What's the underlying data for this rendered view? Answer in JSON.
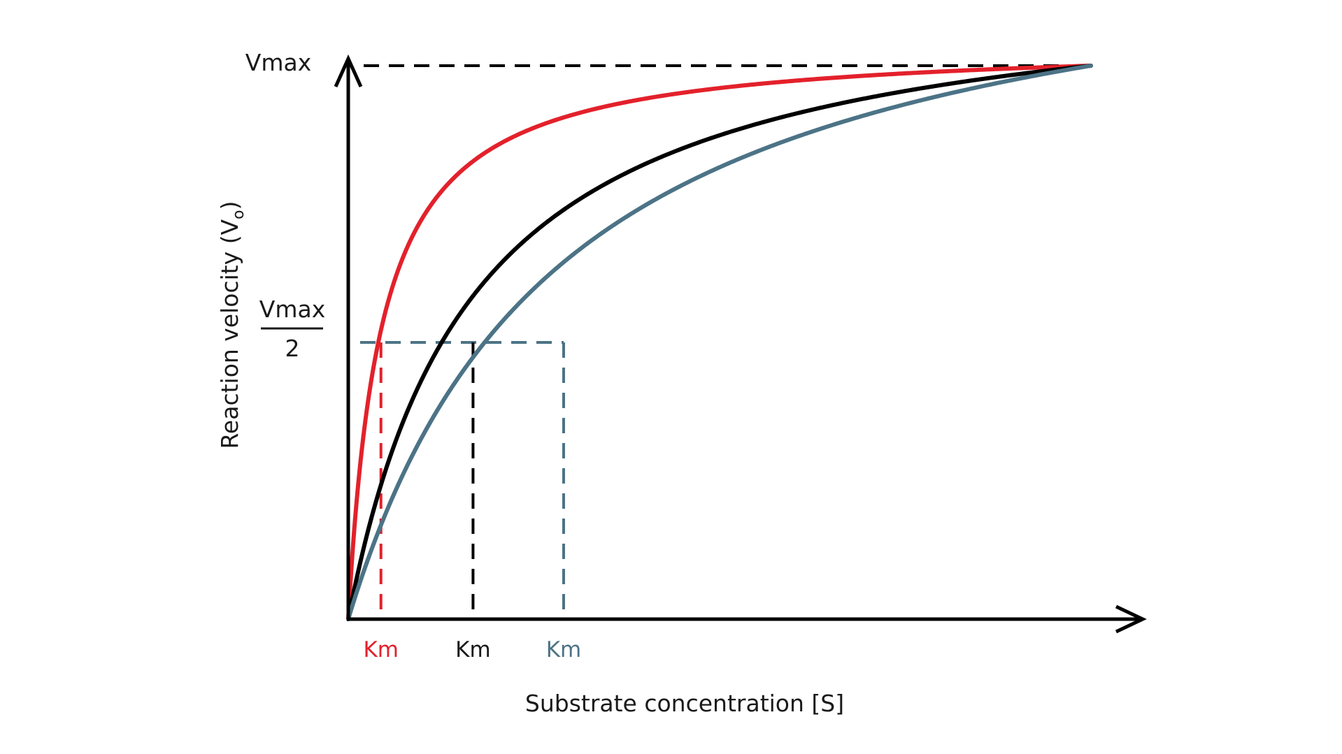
{
  "chart_data": {
    "type": "line",
    "title": "",
    "xlabel": "Substrate concentration [S]",
    "ylabel": "Reaction velocity (V",
    "ylabel_subscript": "o",
    "ylabel_close": ")",
    "xlim": [
      0,
      1
    ],
    "ylim": [
      0,
      1
    ],
    "y_ticks": {
      "vmax_label": "Vmax",
      "half_numerator": "Vmax",
      "half_denominator": "2"
    },
    "reference_lines": [
      {
        "name": "Vmax",
        "axis": "y",
        "value": 1.0,
        "color": "#000000"
      },
      {
        "name": "Vmax/2",
        "axis": "y",
        "value": 0.5,
        "color": "#4c7386"
      }
    ],
    "series": [
      {
        "color": "#e3212b",
        "km": 0.044,
        "km_label": "Km"
      },
      {
        "color": "#000000",
        "km": 0.168,
        "km_label": "Km"
      },
      {
        "color": "#4c7386",
        "km": 0.29,
        "km_label": "Km"
      }
    ]
  }
}
